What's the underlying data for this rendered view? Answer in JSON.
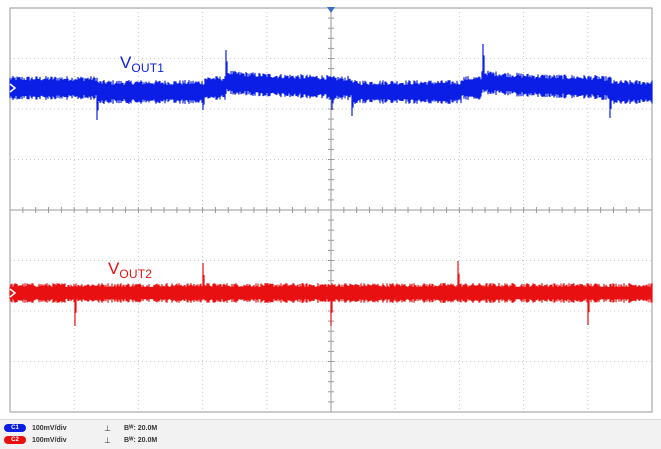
{
  "colors": {
    "background": "#ffffff",
    "grid": "#c8c8c8",
    "grid_axis": "#9a9a9a",
    "frame": "#9a9a9a",
    "trigger_marker": "#3a6fc8",
    "ch1": "#0a1ee6",
    "ch2": "#e81010"
  },
  "traces": {
    "ch1": {
      "label_main": "V",
      "label_sub": "OUT1"
    },
    "ch2": {
      "label_main": "V",
      "label_sub": "OUT2"
    }
  },
  "status": {
    "ch1": {
      "badge": "C1",
      "scale": "100mV/div",
      "coupling_icon": "⊥",
      "bandwidth": "Bᵂ: 20.0M"
    },
    "ch2": {
      "badge": "C2",
      "scale": "100mV/div",
      "coupling_icon": "⊥",
      "bandwidth": "Bᵂ: 20.0M"
    }
  },
  "icons": {
    "trigger_marker": "triangle-down-icon",
    "ch1_offset_marker": "chevron-right-icon",
    "ch2_offset_marker": "chevron-right-icon"
  }
}
